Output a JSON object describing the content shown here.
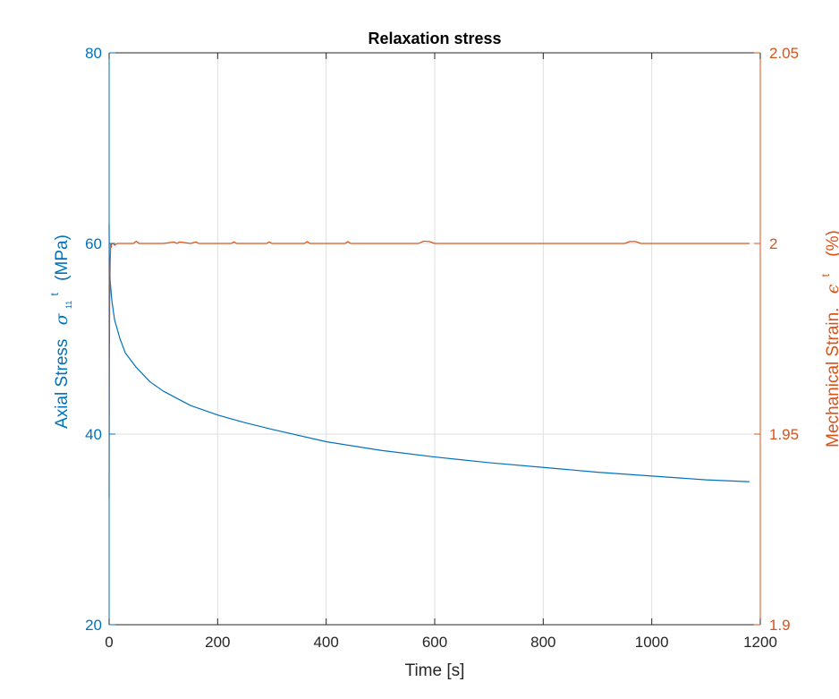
{
  "chart_data": {
    "type": "line",
    "title": "Relaxation stress",
    "xlabel": "Time [s]",
    "xlim": [
      0,
      1200
    ],
    "xticks": [
      0,
      200,
      400,
      600,
      800,
      1000,
      1200
    ],
    "grid": true,
    "left_axis": {
      "label_text": "Axial Stress",
      "label_symbol": "σ",
      "label_subscript": "11",
      "label_superscript": "t",
      "label_unit": "(MPa)",
      "ylim": [
        20,
        80
      ],
      "yticks": [
        20,
        40,
        60,
        80
      ],
      "color": "#0072BD"
    },
    "right_axis": {
      "label_text": "Mechanical Strain.",
      "label_symbol": "ϵ",
      "label_superscript": "t",
      "label_unit": "(%)",
      "ylim": [
        1.9,
        2.05
      ],
      "yticks": [
        1.9,
        1.95,
        2,
        2.05
      ],
      "ytick_labels": [
        "1.9",
        "1.95",
        "2",
        "2.05"
      ],
      "color": "#D95319"
    },
    "series": [
      {
        "axis": "left",
        "color": "#0072BD",
        "x": [
          0,
          0.3,
          1,
          2,
          5,
          10,
          20,
          30,
          50,
          75,
          100,
          150,
          200,
          250,
          300,
          400,
          500,
          600,
          700,
          800,
          900,
          1000,
          1100,
          1180
        ],
        "y": [
          62,
          59,
          57.5,
          56,
          54,
          52,
          50,
          48.5,
          47,
          45.5,
          44.5,
          43,
          42,
          41.2,
          40.5,
          39.2,
          38.3,
          37.6,
          37,
          36.5,
          36,
          35.6,
          35.2,
          35
        ]
      },
      {
        "axis": "right",
        "color": "#D95319",
        "x": [
          0,
          0.2,
          0.5,
          1,
          2,
          3,
          4,
          5,
          8,
          10,
          15,
          20,
          30,
          45,
          50,
          55,
          100,
          120,
          125,
          130,
          150,
          160,
          165,
          170,
          225,
          230,
          235,
          290,
          295,
          300,
          360,
          365,
          370,
          435,
          440,
          445,
          570,
          580,
          590,
          600,
          950,
          960,
          970,
          980,
          1180
        ],
        "y": [
          1.933,
          1.95,
          1.97,
          1.985,
          1.995,
          2.0,
          1.999,
          2.0,
          2.0,
          1.9995,
          2.0,
          2.0,
          2.0,
          2.0,
          2.0006,
          2.0,
          2.0,
          2.0004,
          2.0,
          2.0004,
          2.0,
          2.0004,
          2.0,
          2.0,
          2.0,
          2.0004,
          2.0,
          2.0,
          2.0004,
          2.0,
          2.0,
          2.0005,
          2.0,
          2.0,
          2.0005,
          2.0,
          2.0,
          2.0006,
          2.0005,
          2.0,
          2.0,
          2.0005,
          2.0005,
          2.0,
          2.0
        ]
      }
    ]
  }
}
